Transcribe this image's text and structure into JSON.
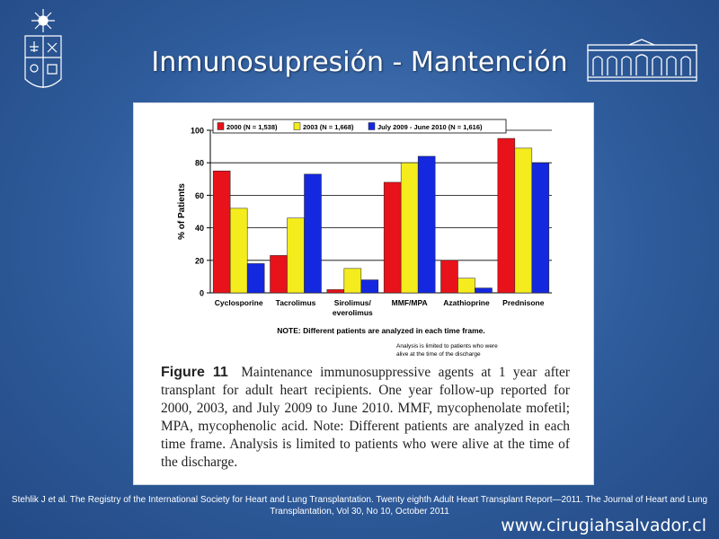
{
  "slide": {
    "title": "Inmunosupresión - Mantención",
    "citation": "Stehlik J et al. The Registry of the International Society for Heart and Lung Transplantation. Twenty eighth Adult Heart Transplant Report—2011. The Journal of Heart and Lung Transplantation, Vol 30, No 10, October 2011",
    "website": "www.cirugiahsalvador.cl",
    "background_color": "#2f5c9c"
  },
  "figure": {
    "label": "Figure 11",
    "caption": "Maintenance immunosuppressive agents at 1 year after transplant for adult heart recipients. One year follow-up reported for 2000, 2003, and July 2009 to June 2010. MMF, mycophenolate mofetil; MPA, mycophenolic acid. Note: Different patients are analyzed in each time frame. Analysis is limited to patients who were alive at the time of the discharge."
  },
  "chart_data": {
    "type": "bar",
    "categories": [
      "Cyclosporine",
      "Tacrolimus",
      "Sirolimus/ everolimus",
      "MMF/MPA",
      "Azathioprine",
      "Prednisone"
    ],
    "series": [
      {
        "name": "2000 (N = 1,538)",
        "color": "#e8121a",
        "values": [
          75,
          23,
          2,
          68,
          20,
          95
        ]
      },
      {
        "name": "2003 (N = 1,668)",
        "color": "#f4ec1c",
        "values": [
          52,
          46,
          15,
          80,
          9,
          89
        ]
      },
      {
        "name": "July 2009 - June 2010 (N = 1,616)",
        "color": "#1428e0",
        "values": [
          18,
          73,
          8,
          84,
          3,
          80
        ]
      }
    ],
    "ylabel": "% of Patients",
    "ylim": [
      0,
      100
    ],
    "yticks": [
      0,
      20,
      40,
      60,
      80,
      100
    ],
    "grid": true,
    "legend": "top",
    "note": "NOTE: Different patients are analyzed in each time frame.",
    "analysis_note": "Analysis is limited to patients who were alive at the time of the discharge"
  }
}
